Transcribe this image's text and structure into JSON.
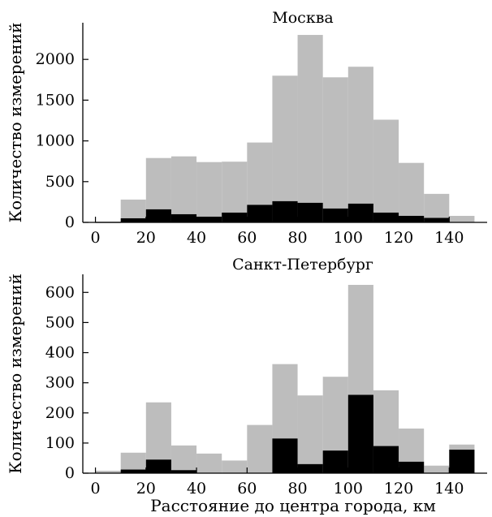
{
  "chart_data": [
    {
      "type": "bar",
      "title": "Москва",
      "xlabel": "",
      "ylabel": "Количество измерений",
      "xlim": [
        -5,
        155
      ],
      "ylim": [
        0,
        2450
      ],
      "xticks": [
        0,
        20,
        40,
        60,
        80,
        100,
        120,
        140
      ],
      "yticks": [
        0,
        500,
        1000,
        1500,
        2000
      ],
      "bin_edges": [
        0,
        10,
        20,
        30,
        40,
        50,
        60,
        70,
        80,
        90,
        100,
        110,
        120,
        130,
        140,
        150
      ],
      "series": [
        {
          "values": [
            0,
            280,
            790,
            810,
            740,
            745,
            980,
            1800,
            2300,
            1780,
            1910,
            1260,
            730,
            350,
            80
          ],
          "color": "#bdbdbd"
        },
        {
          "values": [
            0,
            50,
            160,
            100,
            70,
            120,
            215,
            260,
            240,
            170,
            230,
            120,
            80,
            55,
            0
          ],
          "color": "#000000"
        }
      ]
    },
    {
      "type": "bar",
      "title": "Санкт-Петербург",
      "xlabel": "Расстояние до центра города, км",
      "ylabel": "Количество измерений",
      "xlim": [
        -5,
        155
      ],
      "ylim": [
        0,
        660
      ],
      "xticks": [
        0,
        20,
        40,
        60,
        80,
        100,
        120,
        140
      ],
      "yticks": [
        0,
        100,
        200,
        300,
        400,
        500,
        600
      ],
      "bin_edges": [
        0,
        10,
        20,
        30,
        40,
        50,
        60,
        70,
        80,
        90,
        100,
        110,
        120,
        130,
        140,
        150
      ],
      "series": [
        {
          "values": [
            8,
            68,
            235,
            92,
            65,
            42,
            160,
            362,
            258,
            320,
            625,
            275,
            148,
            25,
            95
          ],
          "color": "#bdbdbd"
        },
        {
          "values": [
            0,
            12,
            45,
            10,
            0,
            0,
            0,
            115,
            30,
            75,
            260,
            90,
            38,
            0,
            78
          ],
          "color": "#000000"
        }
      ]
    }
  ]
}
